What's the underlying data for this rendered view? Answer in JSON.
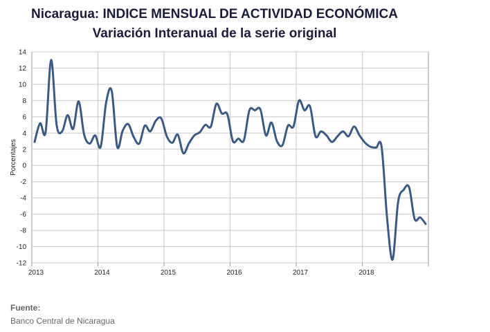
{
  "chart_data": {
    "type": "line",
    "title": "Nicaragua: INDICE MENSUAL DE ACTIVIDAD ECONÓMICA",
    "subtitle": "Variación Interanual de la serie original",
    "xlabel": "",
    "ylabel": "Porcentajes",
    "ylim": [
      -12,
      14
    ],
    "yticks": [
      14,
      12,
      10,
      8,
      6,
      4,
      2,
      0,
      -2,
      -4,
      -6,
      -8,
      -10,
      -12
    ],
    "xticks": [
      "2013",
      "2014",
      "2015",
      "2016",
      "2017",
      "2018"
    ],
    "grid": true,
    "line_color": "#3a5a84",
    "series": [
      {
        "values": [
          2.9,
          5.2,
          4.1,
          13.0,
          5.0,
          4.2,
          6.2,
          4.5,
          7.9,
          3.8,
          2.7,
          3.7,
          2.3,
          7.8,
          9.2,
          2.3,
          4.3,
          5.1,
          3.5,
          2.7,
          4.9,
          4.2,
          5.5,
          5.8,
          3.6,
          2.8,
          3.8,
          1.5,
          2.7,
          3.7,
          4.1,
          5.0,
          4.8,
          7.6,
          6.4,
          6.3,
          3.0,
          3.3,
          3.1,
          6.8,
          6.8,
          6.9,
          3.7,
          5.3,
          3.0,
          2.5,
          4.9,
          4.8,
          8.0,
          6.8,
          7.3,
          3.6,
          4.2,
          3.7,
          2.9,
          3.6,
          4.2,
          3.6,
          4.8,
          3.7,
          2.8,
          2.3,
          2.2,
          2.3,
          -6.5,
          -11.6,
          -4.5,
          -3.0,
          -2.7,
          -6.6,
          -6.4,
          -7.2
        ]
      }
    ]
  },
  "footer": {
    "source_label": "Fuente:",
    "source_name": "Banco Central de Nicaragua"
  }
}
